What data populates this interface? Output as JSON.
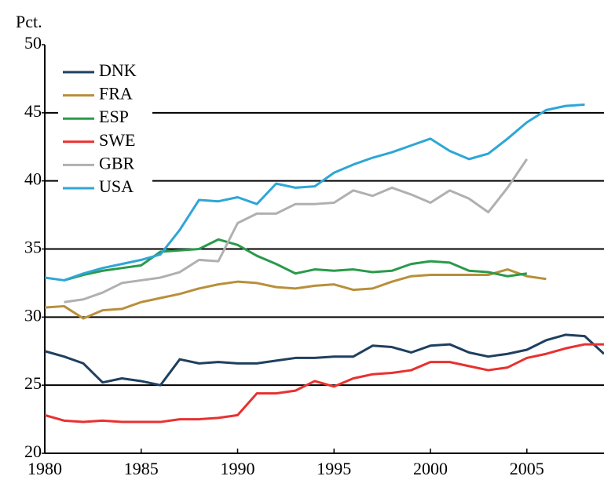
{
  "chart_data": {
    "type": "line",
    "y_label": "Pct.",
    "x": [
      1980,
      1981,
      1982,
      1983,
      1984,
      1985,
      1986,
      1987,
      1988,
      1989,
      1990,
      1991,
      1992,
      1993,
      1994,
      1995,
      1996,
      1997,
      1998,
      1999,
      2000,
      2001,
      2002,
      2003,
      2004,
      2005,
      2006,
      2007,
      2008,
      2009
    ],
    "series": [
      {
        "name": "DNK",
        "color": "#1f3f5f",
        "values": [
          27.5,
          27.1,
          26.6,
          25.2,
          25.5,
          25.3,
          25.0,
          26.9,
          26.6,
          26.7,
          26.6,
          26.6,
          26.8,
          27.0,
          27.0,
          27.1,
          27.1,
          27.9,
          27.8,
          27.4,
          27.9,
          28.0,
          27.4,
          27.1,
          27.3,
          27.6,
          28.3,
          28.7,
          28.6,
          27.3
        ]
      },
      {
        "name": "FRA",
        "color": "#b8903a",
        "values": [
          30.7,
          30.8,
          29.9,
          30.5,
          30.6,
          31.1,
          31.4,
          31.7,
          32.1,
          32.4,
          32.6,
          32.5,
          32.2,
          32.1,
          32.3,
          32.4,
          32.0,
          32.1,
          32.6,
          33.0,
          33.1,
          33.1,
          33.1,
          33.1,
          33.5,
          33.0,
          32.8,
          null,
          null,
          null
        ]
      },
      {
        "name": "ESP",
        "color": "#2a9a4a",
        "values": [
          null,
          32.7,
          33.1,
          33.4,
          33.6,
          33.8,
          34.8,
          34.9,
          35.0,
          35.7,
          35.3,
          34.5,
          33.9,
          33.2,
          33.5,
          33.4,
          33.5,
          33.3,
          33.4,
          33.9,
          34.1,
          34.0,
          33.4,
          33.3,
          33.0,
          33.2,
          null,
          null,
          null,
          null
        ]
      },
      {
        "name": "SWE",
        "color": "#e8312f",
        "values": [
          22.8,
          22.4,
          22.3,
          22.4,
          22.3,
          22.3,
          22.3,
          22.5,
          22.5,
          22.6,
          22.8,
          24.4,
          24.4,
          24.6,
          25.3,
          24.9,
          25.5,
          25.8,
          25.9,
          26.1,
          26.7,
          26.7,
          26.4,
          26.1,
          26.3,
          27.0,
          27.3,
          27.7,
          28.0,
          28.0
        ]
      },
      {
        "name": "GBR",
        "color": "#b0b0b0",
        "values": [
          null,
          31.1,
          31.3,
          31.8,
          32.5,
          32.7,
          32.9,
          33.3,
          34.2,
          34.1,
          36.9,
          37.6,
          37.6,
          38.3,
          38.3,
          38.4,
          39.3,
          38.9,
          39.5,
          39.0,
          38.4,
          39.3,
          38.7,
          37.7,
          39.5,
          41.6,
          null,
          null,
          null,
          null
        ]
      },
      {
        "name": "USA",
        "color": "#2ea6d6",
        "values": [
          32.9,
          32.7,
          33.2,
          33.6,
          33.9,
          34.2,
          34.6,
          36.4,
          38.6,
          38.5,
          38.8,
          38.3,
          39.8,
          39.5,
          39.6,
          40.6,
          41.2,
          41.7,
          42.1,
          42.6,
          43.1,
          42.2,
          41.6,
          42.0,
          43.1,
          44.3,
          45.2,
          45.5,
          45.6,
          null
        ]
      }
    ],
    "xlim": [
      1980,
      2009
    ],
    "xticks": [
      1980,
      1985,
      1990,
      1995,
      2000,
      2005
    ],
    "ylim": [
      20,
      50
    ],
    "yticks": [
      20,
      25,
      30,
      35,
      40,
      45,
      50
    ],
    "grid": true,
    "legend": "upper-left"
  }
}
